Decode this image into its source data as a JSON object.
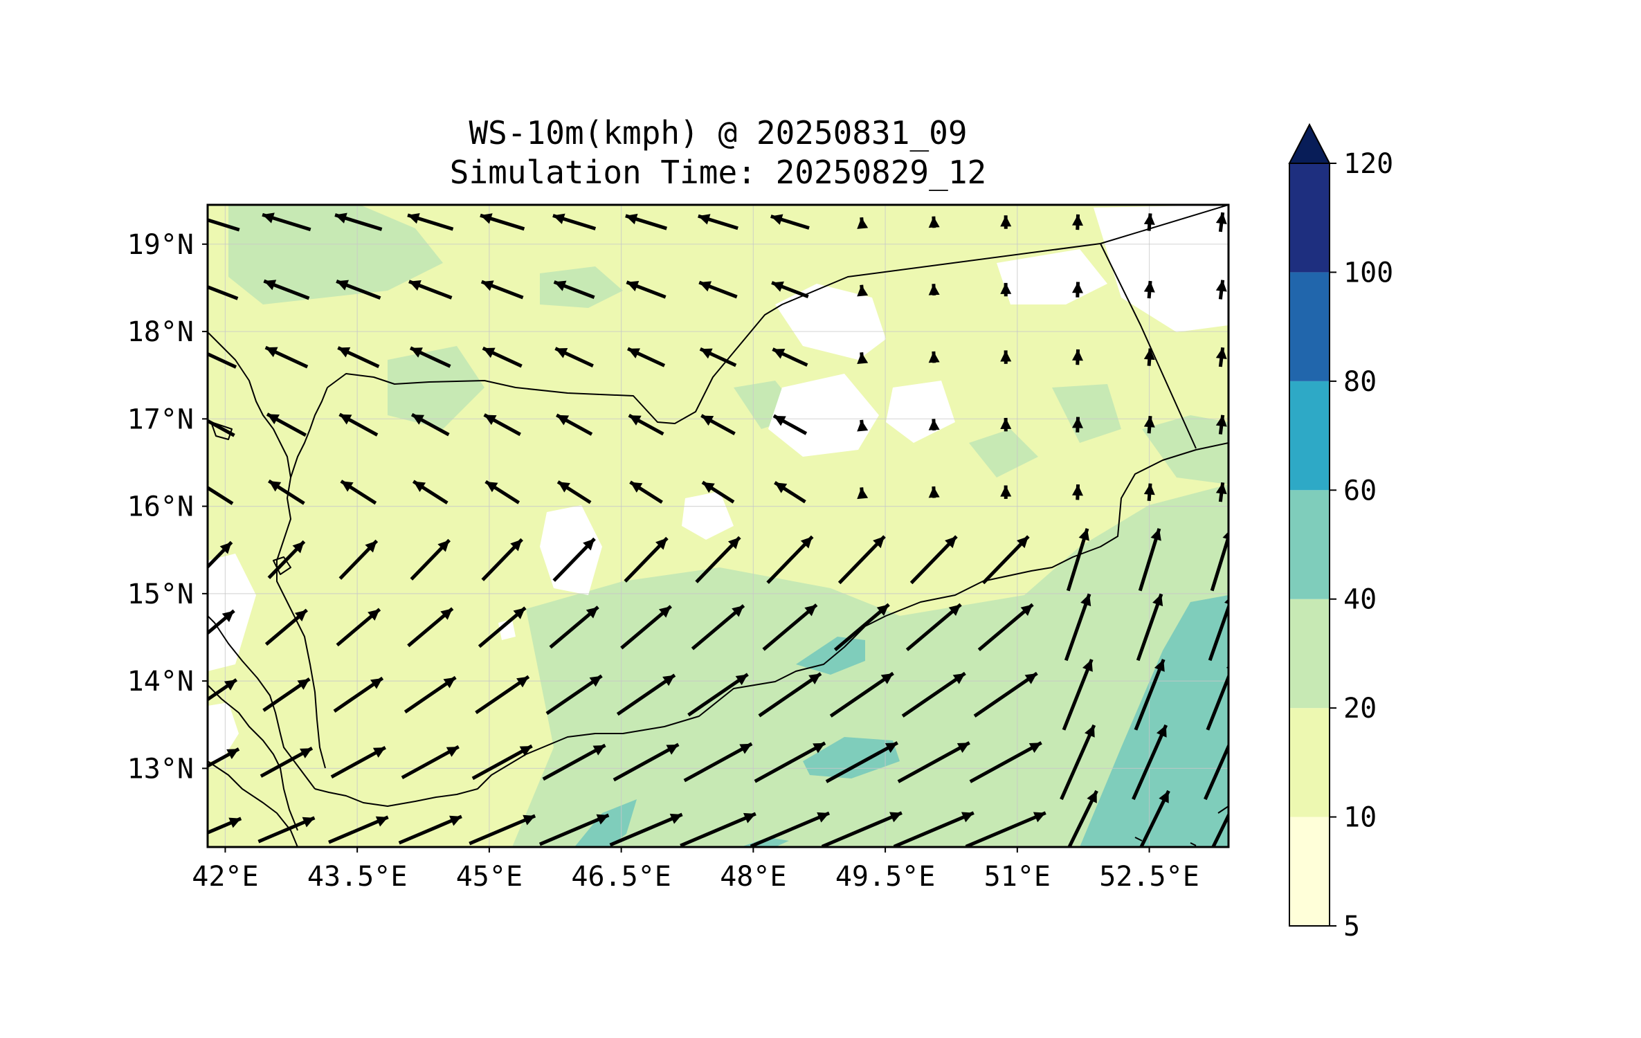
{
  "title": {
    "line1": "WS-10m(kmph) @ 20250831_09",
    "line2": "Simulation Time: 20250829_12"
  },
  "map": {
    "variable": "10 m wind speed",
    "units": "kmph",
    "extent": {
      "lon": [
        41.8,
        53.4
      ],
      "lat": [
        12.1,
        19.45
      ]
    },
    "lon_ticks": [
      {
        "value": 42,
        "label": "42°E"
      },
      {
        "value": 43.5,
        "label": "43.5°E"
      },
      {
        "value": 45,
        "label": "45°E"
      },
      {
        "value": 46.5,
        "label": "46.5°E"
      },
      {
        "value": 48,
        "label": "48°E"
      },
      {
        "value": 49.5,
        "label": "49.5°E"
      },
      {
        "value": 51,
        "label": "51°E"
      },
      {
        "value": 52.5,
        "label": "52.5°E"
      }
    ],
    "lat_ticks": [
      {
        "value": 13,
        "label": "13°N"
      },
      {
        "value": 14,
        "label": "14°N"
      },
      {
        "value": 15,
        "label": "15°N"
      },
      {
        "value": 16,
        "label": "16°N"
      },
      {
        "value": 17,
        "label": "17°N"
      },
      {
        "value": 18,
        "label": "18°N"
      },
      {
        "value": 19,
        "label": "19°N"
      }
    ],
    "gridlines": true
  },
  "colorbar": {
    "extend": "max",
    "levels": [
      {
        "label": "5",
        "value": 5,
        "color": "#ffffd9"
      },
      {
        "label": "10",
        "value": 10,
        "color": "#edf8b1"
      },
      {
        "label": "20",
        "value": 20,
        "color": "#c7e9b4"
      },
      {
        "label": "40",
        "value": 40,
        "color": "#7fcdbb"
      },
      {
        "label": "60",
        "value": 60,
        "color": "#2ea9c6"
      },
      {
        "label": "80",
        "value": 80,
        "color": "#2166ac"
      },
      {
        "label": "100",
        "value": 100,
        "color": "#1e2f7f"
      },
      {
        "label": "120",
        "value": 120,
        "color": "#081d58"
      }
    ]
  },
  "colors": {
    "calm": "#ffffff",
    "light": "#ffffd9",
    "low": "#edf8b1",
    "mid": "#c7e9b4",
    "high": "#7fcdbb",
    "arrow": "#000000",
    "coast": "#000000",
    "grid": "#c8c8c8"
  }
}
